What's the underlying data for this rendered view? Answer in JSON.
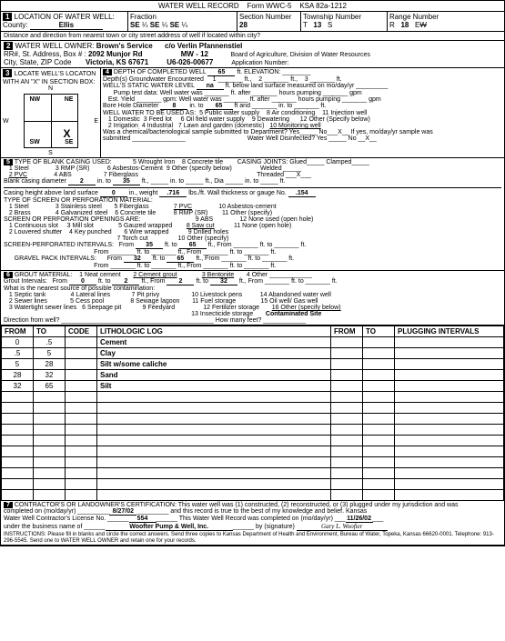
{
  "form": {
    "title": "WATER WELL RECORD",
    "formNo": "Form WWC-5",
    "ksa": "KSA 82a-1212"
  },
  "loc": {
    "county": "Ellis",
    "frac1": "SE",
    "q1": "¼",
    "frac2": "SE",
    "q2": "¼",
    "frac3": "SE",
    "q3": "¼",
    "sectionNum": "28",
    "townT": "T",
    "townNum": "13",
    "townS": "S",
    "rangeR": "R",
    "rangeNum": "18",
    "rangeEW": "E/W",
    "distLabel": "Distance and direction from nearest town or city street address of well if located within city?"
  },
  "owner": {
    "name": "Brown's Service",
    "co": "c/o Verlin Pfannenstiel",
    "addr": "2092 Munjor Rd",
    "mw": "MW - 12",
    "city": "Victoria, KS  67671",
    "u6": "U6-026-00677",
    "board": "Board of Agriculture, Division of Water Resources",
    "appNum": "Application Number:"
  },
  "locate": {
    "title": "LOCATE WELL'S LOCATON WITH AN \"X\" IN SECTION BOX:",
    "n": "N",
    "s": "S",
    "e": "E",
    "w": "W",
    "nw": "NW",
    "ne": "NE",
    "sw": "SW",
    "se": "SE"
  },
  "depth": {
    "completed": "65",
    "elev": "ft. ELEVATION:",
    "gw1": "1",
    "gw2": "2",
    "gw3": "3",
    "static": "na",
    "boreDia": "8",
    "boreTo": "65",
    "use": "WELL WATER TO BE USED AS:",
    "u1": "1   Domestic",
    "u3l": "3  Feed lot",
    "u5": "5  Public water supply",
    "u6": "6  Oil field water supply",
    "u2": "2   Irrigation",
    "u4l": "4  Industrial",
    "u7": "7  Lawn and garden (domestic)",
    "u8": "8  Air conditioning",
    "u9": "9  Dewatering",
    "u10": "10  Monitoring well",
    "u11": "11  Injection well",
    "u12": "12  Other (Specify below)",
    "chem": "Was a chemical/bacteriological sample submitted to Department?  Yes_____ No___X__  If yes, mo/day/yr sample was",
    "sub": "submitted _______________",
    "disinf": "Water Well Disinfected?  Yes _____   No __X__"
  },
  "casing": {
    "title": "TYPE OF BLANK CASING USED:",
    "c1": "1   Steel",
    "c3": "3   RMP (SR)",
    "c5": "5   Wrought Iron",
    "c6": "6   Asbestos-Cement",
    "c8": "8   Concrete tile",
    "c9": "9   Other (specify below)",
    "c2": "2   PVC",
    "c4": "4   ABS",
    "c7": "7   Fiberglass",
    "joints": "CASING JOINTS:  Glued_____ Clamped_____",
    "welded": "Welded _____",
    "threaded": "Threaded ___X___",
    "dia": "2",
    "to": "35",
    "height": "0",
    "weight": ".716",
    "gauge": ".154",
    "screenTitle": "TYPE OF SCREEN OR PERFORATION MATERIAL:",
    "s1": "1   Steel",
    "s3": "3   Stainless steel",
    "s5": "5   Fiberglass",
    "s7": "7   PVC",
    "s10": "10  Asbestos-cement",
    "s2": "2   Brass",
    "s4": "4   Galvanized steel",
    "s6": "6   Concrete tile",
    "s8": "8   RMP (SR)",
    "s11": "11  Other (specify)",
    "s9": "9   ABS",
    "s12": "12  None used (open hole)",
    "openTitle": "SCREEN OR PERFORATION OPENINGS ARE:",
    "o1": "1   Continuous slot",
    "o3": "3   Mill slot",
    "o5": "5   Gauzed wrapped",
    "o7": "7   Drilled",
    "o8": "8   Saw cut",
    "o11": "11  None (open hole)",
    "o2": "2   Louvered shutter",
    "o4": "4   Key punched",
    "o6": "6   Wire wrapped",
    "o9": "9   Drilled holes",
    "o10": "10  Other (specify)",
    "o7b": "7   Torch cut",
    "perfFrom": "35",
    "perfTo": "65",
    "gravFrom": "32",
    "gravTo": "65"
  },
  "grout": {
    "title": "GROUT MATERIAL:",
    "g1": "1  Neat cement",
    "g2": "2  Cement grout",
    "g3": "3  Bentonite",
    "g4": "4  Other",
    "from": "0",
    "to1": "2",
    "from2": "2",
    "to2": "32",
    "contam": "What is the nearest source of possible contamination:",
    "n1": "1   Septic tank",
    "n4": "4   Lateral lines",
    "n7": "7   Pit privy",
    "n10": "10   Livestock pens",
    "n14": "14   Abandoned water well",
    "n2": "2   Sewer lines",
    "n5": "5   Cess pool",
    "n8": "8   Sewage lagoon",
    "n11": "11   Fuel storage",
    "n15": "15   Oil well/ Gas well",
    "n3": "3   Watertight sewer lines",
    "n6": "6   Seepage pit",
    "n9": "9   Feedyard",
    "n12": "12   Fertilizer storage",
    "n16": "16   Other (specify below)",
    "n13": "13   Insecticide storage",
    "site": "Contaminated Site",
    "dir": "Direction from well?",
    "feet": "How many feet?"
  },
  "log": {
    "cols": [
      "FROM",
      "TO",
      "CODE",
      "LITHOLOGIC LOG",
      "FROM",
      "TO",
      "PLUGGING INTERVALS"
    ],
    "rows": [
      [
        "0",
        ".5",
        "",
        "Cement",
        "",
        "",
        ""
      ],
      [
        ".5",
        "5",
        "",
        "Clay",
        "",
        "",
        ""
      ],
      [
        "5",
        "28",
        "",
        "Silt w/some caliche",
        "",
        "",
        ""
      ],
      [
        "28",
        "32",
        "",
        "Sand",
        "",
        "",
        ""
      ],
      [
        "32",
        "65",
        "",
        "Silt",
        "",
        "",
        ""
      ],
      [
        "",
        "",
        "",
        "",
        "",
        "",
        ""
      ],
      [
        "",
        "",
        "",
        "",
        "",
        "",
        ""
      ],
      [
        "",
        "",
        "",
        "",
        "",
        "",
        ""
      ],
      [
        "",
        "",
        "",
        "",
        "",
        "",
        ""
      ],
      [
        "",
        "",
        "",
        "",
        "",
        "",
        ""
      ],
      [
        "",
        "",
        "",
        "",
        "",
        "",
        ""
      ],
      [
        "",
        "",
        "",
        "",
        "",
        "",
        ""
      ],
      [
        "",
        "",
        "",
        "",
        "",
        "",
        ""
      ],
      [
        "",
        "",
        "",
        "",
        "",
        "",
        ""
      ],
      [
        "",
        "",
        "",
        "",
        "",
        "",
        ""
      ]
    ]
  },
  "cert": {
    "title": "CONTRACTOR'S OR LANDOWNER'S CERTIFICATION:  This water well was (1) constructed, (2) reconstructed, or (3) plugged under my jurisdiction and was",
    "date": "8/27/02",
    "rec": "and this record is true to the best of my knowledge and belief.  Kansas",
    "lic": "554",
    "compDate": "11/26/02",
    "biz": "Woofter Pump & Well, Inc.",
    "sig": "Gary L. Woofter",
    "instr": "INSTRUCTIONS:   Please fill in blanks and circle the correct answers.  Send three copies to Kansas Department of Health and Environment, Bureau of Water, Topeka, Kansas 66620-0001.  Telephone:  913-296-5545.  Send one to WATER WELL OWNER and retain one for your records."
  }
}
